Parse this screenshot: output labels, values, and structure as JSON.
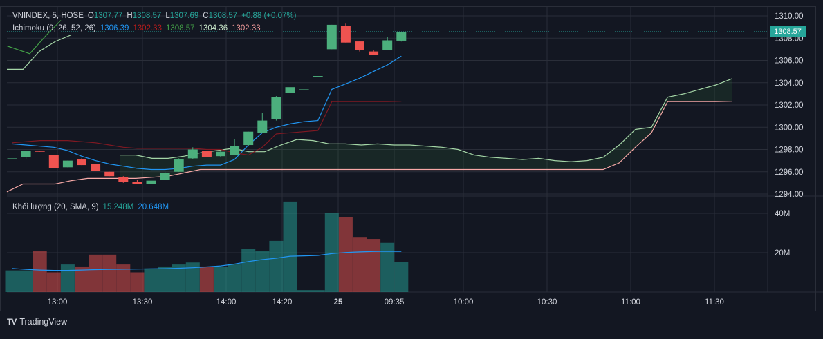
{
  "legend": {
    "symbol": "VNINDEX, 5, HOSE",
    "o_label": "O",
    "o_value": "1307.77",
    "h_label": "H",
    "h_value": "1308.57",
    "l_label": "L",
    "l_value": "1307.69",
    "c_label": "C",
    "c_value": "1308.57",
    "change": "+0.88 (+0.07%)"
  },
  "ichimoku": {
    "label": "Ichimoku (9, 26, 52, 26)",
    "values": [
      "1306.39",
      "1302.33",
      "1308.57",
      "1304.36",
      "1302.33"
    ],
    "colors": [
      "#2962ff",
      "#b71c1c",
      "#43a047",
      "#a5d6a7",
      "#ef9a9a"
    ]
  },
  "volume_legend": {
    "label": "Khối lượng (20, SMA, 9)",
    "value1": "15.248M",
    "value2": "20.648M"
  },
  "price_tag": "1308.57",
  "footer": {
    "logo_text": "TV",
    "brand": "TradingView"
  },
  "colors": {
    "up": "#26a69a",
    "up_candle": "#4caf7d",
    "down": "#ef5350",
    "tenkan": "#2196f3",
    "kijun": "#801922",
    "span_a": "#a5d6a7",
    "span_b": "#f7a9a7",
    "vol_sma": "#2196f3",
    "background": "#131722",
    "grid": "#2a2e39"
  },
  "chart_data": {
    "type": "candlestick",
    "price_axis": {
      "ticks": [
        "1294.00",
        "1296.00",
        "1298.00",
        "1300.00",
        "1302.00",
        "1304.00",
        "1306.00",
        "1308.00",
        "1310.00"
      ],
      "ylim": [
        1294,
        1310
      ]
    },
    "volume_axis": {
      "ticks": [
        "20M",
        "40M"
      ],
      "ylim": [
        0,
        48
      ]
    },
    "time_axis": {
      "ticks": [
        "13:00",
        "13:30",
        "14:00",
        "14:20",
        "25",
        "09:35",
        "10:00",
        "10:30",
        "11:00",
        "11:30"
      ]
    },
    "candles": [
      {
        "o": 1297.2,
        "h": 1297.4,
        "l": 1297.0,
        "c": 1297.2,
        "v": 11
      },
      {
        "o": 1297.3,
        "h": 1297.9,
        "l": 1297.1,
        "c": 1297.9,
        "v": 11
      },
      {
        "o": 1297.9,
        "h": 1297.9,
        "l": 1297.8,
        "c": 1297.8,
        "v": 21
      },
      {
        "o": 1297.5,
        "h": 1297.5,
        "l": 1296.3,
        "c": 1296.3,
        "v": 10
      },
      {
        "o": 1296.4,
        "h": 1297.0,
        "l": 1296.4,
        "c": 1297.0,
        "v": 14
      },
      {
        "o": 1297.1,
        "h": 1297.2,
        "l": 1296.6,
        "c": 1296.6,
        "v": 13
      },
      {
        "o": 1296.7,
        "h": 1296.7,
        "l": 1296.1,
        "c": 1296.1,
        "v": 19
      },
      {
        "o": 1296.0,
        "h": 1296.0,
        "l": 1295.6,
        "c": 1295.6,
        "v": 19
      },
      {
        "o": 1295.5,
        "h": 1295.6,
        "l": 1295.0,
        "c": 1295.1,
        "v": 14
      },
      {
        "o": 1295.1,
        "h": 1295.3,
        "l": 1294.9,
        "c": 1294.9,
        "v": 10
      },
      {
        "o": 1294.9,
        "h": 1295.3,
        "l": 1294.8,
        "c": 1295.2,
        "v": 12
      },
      {
        "o": 1295.3,
        "h": 1296.0,
        "l": 1295.3,
        "c": 1295.9,
        "v": 13
      },
      {
        "o": 1296.0,
        "h": 1297.2,
        "l": 1296.0,
        "c": 1297.1,
        "v": 14
      },
      {
        "o": 1297.2,
        "h": 1298.2,
        "l": 1297.1,
        "c": 1298.0,
        "v": 15
      },
      {
        "o": 1297.9,
        "h": 1297.9,
        "l": 1297.3,
        "c": 1297.3,
        "v": 13
      },
      {
        "o": 1297.4,
        "h": 1297.9,
        "l": 1297.3,
        "c": 1297.8,
        "v": 13
      },
      {
        "o": 1297.5,
        "h": 1298.9,
        "l": 1297.5,
        "c": 1298.3,
        "v": 14
      },
      {
        "o": 1298.4,
        "h": 1299.6,
        "l": 1298.3,
        "c": 1299.6,
        "v": 22
      },
      {
        "o": 1299.5,
        "h": 1301.3,
        "l": 1299.5,
        "c": 1300.6,
        "v": 21
      },
      {
        "o": 1300.7,
        "h": 1302.8,
        "l": 1300.6,
        "c": 1302.7,
        "v": 26
      },
      {
        "o": 1303.1,
        "h": 1304.2,
        "l": 1303.1,
        "c": 1303.6,
        "v": 46
      },
      {
        "o": 1303.4,
        "h": 1303.4,
        "l": 1303.4,
        "c": 1303.4,
        "v": 1
      },
      {
        "o": 1304.6,
        "h": 1304.6,
        "l": 1304.6,
        "c": 1304.6,
        "v": 1
      },
      {
        "o": 1307.0,
        "h": 1309.2,
        "l": 1307.0,
        "c": 1309.2,
        "v": 40
      },
      {
        "o": 1309.1,
        "h": 1309.3,
        "l": 1307.6,
        "c": 1307.6,
        "v": 38
      },
      {
        "o": 1307.7,
        "h": 1307.7,
        "l": 1306.8,
        "c": 1306.9,
        "v": 28
      },
      {
        "o": 1306.8,
        "h": 1306.9,
        "l": 1306.5,
        "c": 1306.5,
        "v": 27
      },
      {
        "o": 1306.9,
        "h": 1308.1,
        "l": 1306.9,
        "c": 1307.8,
        "v": 25
      },
      {
        "o": 1307.77,
        "h": 1308.57,
        "l": 1307.69,
        "c": 1308.57,
        "v": 15.248
      }
    ],
    "volume_sma": [
      12,
      11.5,
      11.2,
      11,
      11,
      11.2,
      11.4,
      11.5,
      11.6,
      11.7,
      11.8,
      11.9,
      12.1,
      12.4,
      12.8,
      13.3,
      14.2,
      15.5,
      16.5,
      17.2,
      18.2,
      18.4,
      18.6,
      19.5,
      20.1,
      20.4,
      20.6,
      20.7,
      20.648
    ],
    "tenkan": [
      1298.5,
      1298.4,
      1298.3,
      1298.2,
      1297.9,
      1297.4,
      1297.0,
      1296.7,
      1296.5,
      1296.3,
      1296.2,
      1296.2,
      1296.3,
      1296.5,
      1296.6,
      1296.6,
      1297.1,
      1298.4,
      1299.5,
      1300.0,
      1300.3,
      1300.5,
      1300.6,
      1303.4,
      1303.9,
      1304.4,
      1305.0,
      1305.6,
      1306.39
    ],
    "kijun": [
      1298.6,
      1298.7,
      1298.8,
      1298.8,
      1298.8,
      1298.7,
      1298.6,
      1298.4,
      1298.2,
      1298.1,
      1298.1,
      1298.1,
      1298.1,
      1298.1,
      1298.0,
      1298.0,
      1297.7,
      1297.5,
      1298.2,
      1299.4,
      1299.5,
      1299.6,
      1299.7,
      1302.3,
      1302.3,
      1302.3,
      1302.3,
      1302.3,
      1302.33
    ],
    "span_a": [
      1305.2,
      1305.2,
      1306.8,
      1307.7,
      1308.3,
      null,
      null,
      1297.5,
      1297.5,
      1297.2,
      1297.2,
      1297.4,
      1297.7,
      1297.9,
      1298.1,
      1297.8,
      1297.8,
      1298.4,
      1298.9,
      1298.8,
      1298.5,
      1298.5,
      1298.4,
      1298.5,
      1298.4,
      1298.4,
      1298.3,
      1298.2,
      1298.0,
      1297.5,
      1297.3,
      1297.2,
      1297.1,
      1297.2,
      1297.0,
      1296.9,
      1297.0,
      1297.3,
      1298.4,
      1299.8,
      1300.0,
      1302.7,
      1303.0,
      1303.4,
      1303.8,
      1304.36
    ],
    "span_b": [
      1294.2,
      1294.9,
      1294.9,
      1294.9,
      1295.2,
      1295.4,
      1295.4,
      1295.4,
      1295.4,
      1295.5,
      1295.6,
      1295.9,
      1296.2,
      1296.2,
      1296.2,
      1296.2,
      1296.2,
      1296.2,
      1296.2,
      1296.2,
      1296.2,
      1296.2,
      1296.2,
      1296.2,
      1296.2,
      1296.2,
      1296.2,
      1296.2,
      1296.2,
      1296.2,
      1296.2,
      1296.2,
      1296.2,
      1296.2,
      1296.2,
      1296.2,
      1296.2,
      1296.2,
      1296.8,
      1298.2,
      1299.5,
      1302.3,
      1302.3,
      1302.3,
      1302.3,
      1302.33
    ]
  }
}
